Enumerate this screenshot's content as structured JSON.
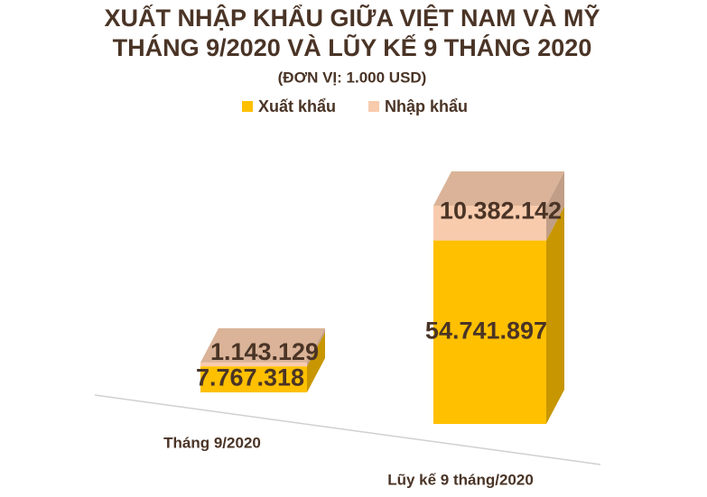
{
  "chart_data": {
    "type": "bar",
    "stacked": true,
    "title": "XUẤT NHẬP KHẨU GIỮA VIỆT NAM VÀ MỸ",
    "subtitle": "THÁNG 9/2020 VÀ LŨY KẾ 9 THÁNG 2020",
    "unit": "(ĐƠN VỊ: 1.000 USD)",
    "categories": [
      "Tháng 9/2020",
      "Lũy kế 9 tháng/2020"
    ],
    "series": [
      {
        "name": "Xuất khẩu",
        "color": "#ffc000",
        "values": [
          7767318,
          54741897
        ],
        "value_labels": [
          "7.767.318",
          "54.741.897"
        ]
      },
      {
        "name": "Nhập khẩu",
        "color": "#f8cbad",
        "values": [
          1143129,
          10382142
        ],
        "value_labels": [
          "1.143.129",
          "10.382.142"
        ]
      }
    ]
  }
}
